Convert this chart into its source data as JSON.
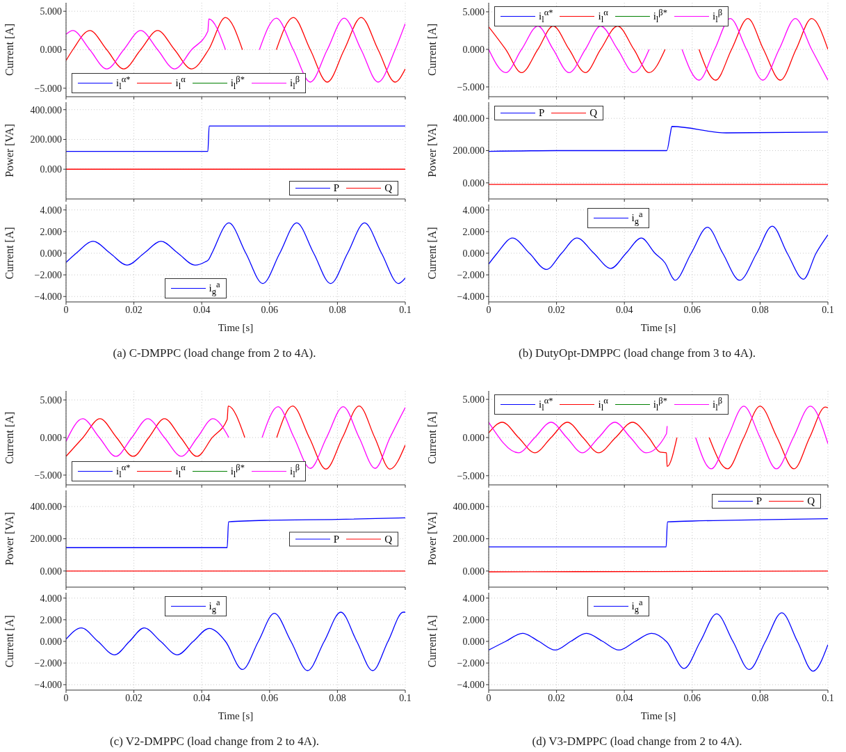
{
  "chart_data": [
    {
      "type": "line",
      "ylabel": "Current [A]",
      "xlim": [
        0,
        0.1
      ],
      "xticks": [
        0,
        0.02,
        0.04,
        0.06,
        0.08,
        0.1
      ],
      "ylim": [
        -6.1,
        6.1
      ],
      "yticks": [
        {
          "value": -5,
          "label": "−5.000"
        },
        {
          "value": 0,
          "label": "0.000"
        },
        {
          "value": 5,
          "label": "5.000"
        }
      ],
      "grid": true,
      "legend": "bottom left",
      "tick_labels": "y",
      "series": [
        {
          "name": "i$_{l}$$^{α*}$",
          "color": "#0000ff"
        },
        {
          "name": "i$_{l}$$^{α}$",
          "color": "#ff0000",
          "x": [
            0,
            0.002,
            0.007,
            0.012,
            0.017,
            0.022,
            0.027,
            0.032,
            0.037,
            0.042,
            0.047,
            0.052,
            0.057,
            0.062,
            0.067,
            0.072,
            0.077,
            0.082,
            0.087,
            0.092,
            0.097,
            0.1
          ],
          "values": [
            -1.4,
            0,
            2.5,
            0,
            -2.5,
            0,
            2.5,
            0,
            -2.5,
            0,
            4.2,
            0,
            null,
            0,
            4.2,
            0,
            -4.2,
            0,
            4.2,
            0,
            -4.2,
            -2.5
          ]
        },
        {
          "name": "i$_{l}$$^{β*}$",
          "color": "#008000"
        },
        {
          "name": "i$_{l}$$^{β}$",
          "color": "#ff00ff",
          "x": [
            0,
            0.002,
            0.007,
            0.012,
            0.017,
            0.022,
            0.027,
            0.032,
            0.037,
            0.0418,
            0.0421,
            0.047,
            0.052,
            0.057,
            0.062,
            0.067,
            0.072,
            0.077,
            0.082,
            0.087,
            0.092,
            0.097,
            0.1
          ],
          "values": [
            2.0,
            2.5,
            0,
            -2.5,
            0,
            2.5,
            0,
            -2.5,
            0,
            2.4,
            4.0,
            0,
            null,
            0,
            4.1,
            0,
            -4.2,
            0,
            4.1,
            0,
            -4.2,
            0,
            3.4
          ]
        }
      ]
    },
    {
      "type": "line",
      "ylabel": "Power [VA]",
      "xlim": [
        0,
        0.1
      ],
      "xticks": [
        0,
        0.02,
        0.04,
        0.06,
        0.08,
        0.1
      ],
      "ylim": [
        -200,
        450
      ],
      "yticks": [
        {
          "value": 0,
          "label": "0.000"
        },
        {
          "value": 200,
          "label": "200.000"
        },
        {
          "value": 400,
          "label": "400.000"
        }
      ],
      "grid": true,
      "legend": "bottom right",
      "tick_labels": "y",
      "series": [
        {
          "name": "P",
          "color": "#0000ff",
          "x": [
            0,
            0.02,
            0.0418,
            0.0422,
            0.06,
            0.08,
            0.1
          ],
          "values": [
            120,
            120,
            120,
            290,
            290,
            290,
            290
          ]
        },
        {
          "name": "Q",
          "color": "#ff0000",
          "x": [
            0,
            0.1
          ],
          "values": [
            0,
            0
          ]
        }
      ]
    },
    {
      "type": "line",
      "ylabel": "Current [A]",
      "xlabel": "Time [s]",
      "xlim": [
        0,
        0.1
      ],
      "xticks": [
        0,
        0.02,
        0.04,
        0.06,
        0.08,
        0.1
      ],
      "ylim": [
        -4.5,
        4.5
      ],
      "yticks": [
        {
          "value": -4,
          "label": "−4.000"
        },
        {
          "value": -2,
          "label": "−2.000"
        },
        {
          "value": 0,
          "label": "0.000"
        },
        {
          "value": 2,
          "label": "2.000"
        },
        {
          "value": 4,
          "label": "4.000"
        }
      ],
      "grid": true,
      "legend": "bottom",
      "annotations": [
        "(a) C-DMPPC (load change from 2 to 4A)."
      ],
      "series": [
        {
          "name": "i$_{g}$$^{a}$",
          "color": "#0000ff",
          "x": [
            0,
            0.003,
            0.008,
            0.013,
            0.018,
            0.023,
            0.028,
            0.033,
            0.038,
            0.041,
            0.042,
            0.043,
            0.048,
            0.053,
            0.058,
            0.063,
            0.068,
            0.073,
            0.078,
            0.083,
            0.088,
            0.093,
            0.098,
            0.1
          ],
          "values": [
            -0.85,
            0,
            1.1,
            0,
            -1.1,
            0,
            1.1,
            0,
            -1.1,
            -0.8,
            -0.6,
            0,
            2.8,
            0,
            -2.8,
            0,
            2.8,
            0,
            -2.8,
            0,
            2.8,
            0,
            -2.8,
            -2.3
          ]
        }
      ]
    },
    {
      "type": "line",
      "ylabel": "Current [A]",
      "xlim": [
        0,
        0.1
      ],
      "xticks": [
        0,
        0.02,
        0.04,
        0.06,
        0.08,
        0.1
      ],
      "ylim": [
        -6.3,
        6.2
      ],
      "yticks": [
        {
          "value": -5,
          "label": "−5.000"
        },
        {
          "value": 0,
          "label": "0.000"
        },
        {
          "value": 5,
          "label": "5.000"
        }
      ],
      "grid": true,
      "legend": "top left",
      "tick_labels": "y",
      "series": [
        {
          "name": "i$_{l}$$^{α*}$",
          "color": "#0000ff"
        },
        {
          "name": "i$_{l}$$^{α}$",
          "color": "#ff0000",
          "x": [
            0,
            0.005,
            0.0097,
            0.0145,
            0.019,
            0.0237,
            0.0285,
            0.033,
            0.038,
            0.0428,
            0.0473,
            0.052,
            0.0574,
            0.062,
            0.0669,
            0.0716,
            0.0764,
            0.081,
            0.086,
            0.0906,
            0.0952,
            0.1
          ],
          "values": [
            3.0,
            0,
            -3.1,
            0,
            3.1,
            0,
            -3.1,
            0,
            3.1,
            0,
            -3.1,
            0,
            null,
            0,
            -4.1,
            0,
            4.1,
            0,
            -4.1,
            0,
            4.1,
            0
          ]
        },
        {
          "name": "i$_{l}$$^{β*}$",
          "color": "#008000"
        },
        {
          "name": "i$_{l}$$^{β}$",
          "color": "#ff00ff",
          "x": [
            0,
            0.005,
            0.0097,
            0.0145,
            0.019,
            0.0237,
            0.0285,
            0.033,
            0.038,
            0.0428,
            0.0473,
            0.0525,
            0.057,
            0.062,
            0.0666,
            0.0712,
            0.076,
            0.0808,
            0.0856,
            0.0904,
            0.0952,
            0.1
          ],
          "values": [
            0,
            -3.1,
            0,
            3.1,
            0,
            -3.1,
            0,
            3.1,
            0,
            -3.1,
            0,
            null,
            0,
            -4.1,
            0,
            4.1,
            0,
            -4.1,
            0,
            4.1,
            0,
            -4.1
          ]
        }
      ]
    },
    {
      "type": "line",
      "ylabel": "Power [VA]",
      "xlim": [
        0,
        0.1
      ],
      "xticks": [
        0,
        0.02,
        0.04,
        0.06,
        0.08,
        0.1
      ],
      "ylim": [
        -100,
        500
      ],
      "yticks": [
        {
          "value": 0,
          "label": "0.000"
        },
        {
          "value": 200,
          "label": "200.000"
        },
        {
          "value": 400,
          "label": "400.000"
        }
      ],
      "grid": true,
      "legend": "top left",
      "tick_labels": "y",
      "series": [
        {
          "name": "P",
          "color": "#0000ff",
          "x": [
            0,
            0.02,
            0.04,
            0.0525,
            0.0535,
            0.054,
            0.07,
            0.1
          ],
          "values": [
            195,
            200,
            200,
            200,
            300,
            350,
            310,
            315
          ]
        },
        {
          "name": "Q",
          "color": "#ff0000",
          "x": [
            0,
            0.1
          ],
          "values": [
            -10,
            -10
          ]
        }
      ]
    },
    {
      "type": "line",
      "ylabel": "Current [A]",
      "xlabel": "Time [s]",
      "xlim": [
        0,
        0.1
      ],
      "xticks": [
        0,
        0.02,
        0.04,
        0.06,
        0.08,
        0.1
      ],
      "ylim": [
        -4.5,
        4.5
      ],
      "yticks": [
        {
          "value": -4,
          "label": "−4.000"
        },
        {
          "value": -2,
          "label": "−2.000"
        },
        {
          "value": 0,
          "label": "0.000"
        },
        {
          "value": 2,
          "label": "2.000"
        },
        {
          "value": 4,
          "label": "4.000"
        }
      ],
      "grid": true,
      "legend": "top",
      "annotations": [
        "(b) DutyOpt-DMPPC (load change from 3 to 4A)."
      ],
      "series": [
        {
          "name": "i$_{g}$$^{a}$",
          "color": "#0000ff",
          "x": [
            0,
            0.0025,
            0.007,
            0.012,
            0.017,
            0.0215,
            0.026,
            0.031,
            0.036,
            0.0405,
            0.045,
            0.049,
            0.052,
            0.0545,
            0.0549,
            0.0597,
            0.0645,
            0.069,
            0.074,
            0.079,
            0.0836,
            0.088,
            0.0928,
            0.0965,
            0.1
          ],
          "values": [
            -1.0,
            0,
            1.4,
            0,
            -1.5,
            0,
            1.4,
            0,
            -1.4,
            0,
            1.4,
            0,
            -0.9,
            -2.4,
            -2.5,
            0,
            2.4,
            0,
            -2.5,
            0,
            2.5,
            0,
            -2.4,
            0,
            1.7
          ]
        }
      ]
    },
    {
      "type": "line",
      "ylabel": "Current [A]",
      "xlim": [
        0,
        0.1
      ],
      "xticks": [
        0,
        0.02,
        0.04,
        0.06,
        0.08,
        0.1
      ],
      "ylim": [
        -6.3,
        6.2
      ],
      "yticks": [
        {
          "value": -5,
          "label": "−5.000"
        },
        {
          "value": 0,
          "label": "0.000"
        },
        {
          "value": 5,
          "label": "5.000"
        }
      ],
      "grid": true,
      "legend": "bottom left",
      "tick_labels": "y",
      "series": [
        {
          "name": "i$_{l}$$^{α*}$",
          "color": "#0000ff"
        },
        {
          "name": "i$_{l}$$^{α}$",
          "color": "#ff0000",
          "x": [
            0,
            0.005,
            0.01,
            0.0149,
            0.0198,
            0.0244,
            0.029,
            0.0338,
            0.0386,
            0.0431,
            0.0475,
            0.0478,
            0.0527,
            0.0575,
            0.0621,
            0.0668,
            0.0717,
            0.0766,
            0.0815,
            0.0864,
            0.091,
            0.0955,
            0.1
          ],
          "values": [
            -2.5,
            0,
            2.5,
            0,
            -2.5,
            0,
            2.5,
            0,
            -2.5,
            0,
            2.4,
            4.2,
            0,
            null,
            0,
            4.2,
            0,
            -4.2,
            0,
            4.2,
            0,
            -4.2,
            -1.0
          ]
        },
        {
          "name": "i$_{l}$$^{β*}$",
          "color": "#008000"
        },
        {
          "name": "i$_{l}$$^{β}$",
          "color": "#ff00ff",
          "x": [
            0,
            0.0049,
            0.0098,
            0.0147,
            0.0194,
            0.0241,
            0.029,
            0.034,
            0.0387,
            0.0433,
            0.048,
            0.053,
            0.0578,
            0.0625,
            0.0672,
            0.072,
            0.0768,
            0.0817,
            0.0864,
            0.0911,
            0.0955,
            0.1
          ],
          "values": [
            -0.5,
            2.5,
            0,
            -2.5,
            0,
            2.5,
            0,
            -2.5,
            0,
            2.5,
            0,
            null,
            0,
            4.1,
            0,
            -4.1,
            0,
            4.1,
            0,
            -4.1,
            0,
            4.0
          ]
        }
      ]
    },
    {
      "type": "line",
      "ylabel": "Power [VA]",
      "xlim": [
        0,
        0.1
      ],
      "xticks": [
        0,
        0.02,
        0.04,
        0.06,
        0.08,
        0.1
      ],
      "ylim": [
        -100,
        500
      ],
      "yticks": [
        {
          "value": 0,
          "label": "0.000"
        },
        {
          "value": 200,
          "label": "200.000"
        },
        {
          "value": 400,
          "label": "400.000"
        }
      ],
      "grid": true,
      "legend": "right",
      "tick_labels": "y",
      "series": [
        {
          "name": "P",
          "color": "#0000ff",
          "x": [
            0,
            0.02,
            0.0475,
            0.0479,
            0.06,
            0.08,
            0.1
          ],
          "values": [
            145,
            145,
            145,
            305,
            315,
            320,
            330
          ]
        },
        {
          "name": "Q",
          "color": "#ff0000",
          "x": [
            0,
            0.1
          ],
          "values": [
            0,
            0
          ]
        }
      ]
    },
    {
      "type": "line",
      "ylabel": "Current [A]",
      "xlabel": "Time [s]",
      "xlim": [
        0,
        0.1
      ],
      "xticks": [
        0,
        0.02,
        0.04,
        0.06,
        0.08,
        0.1
      ],
      "ylim": [
        -4.5,
        4.5
      ],
      "yticks": [
        {
          "value": -4,
          "label": "−4.000"
        },
        {
          "value": -2,
          "label": "−2.000"
        },
        {
          "value": 0,
          "label": "0.000"
        },
        {
          "value": 2,
          "label": "2.000"
        },
        {
          "value": 4,
          "label": "4.000"
        }
      ],
      "grid": true,
      "legend": "top",
      "annotations": [
        "(c) V2-DMPPC (load change from 2 to 4A)."
      ],
      "series": [
        {
          "name": "i$_{g}$$^{a}$",
          "color": "#0000ff",
          "x": [
            0,
            0.0045,
            0.0094,
            0.0143,
            0.0187,
            0.023,
            0.0279,
            0.0328,
            0.0375,
            0.0422,
            0.047,
            0.052,
            0.0567,
            0.0614,
            0.0663,
            0.0712,
            0.0761,
            0.081,
            0.0857,
            0.0904,
            0.0949,
            0.0994,
            0.1
          ],
          "values": [
            0.2,
            1.25,
            0,
            -1.25,
            0,
            1.25,
            0,
            -1.25,
            0,
            1.2,
            0,
            -2.6,
            0,
            2.6,
            0,
            -2.7,
            0,
            2.7,
            0,
            -2.7,
            0,
            2.7,
            2.7
          ]
        }
      ]
    },
    {
      "type": "line",
      "ylabel": "Current [A]",
      "xlim": [
        0,
        0.1
      ],
      "xticks": [
        0,
        0.02,
        0.04,
        0.06,
        0.08,
        0.1
      ],
      "ylim": [
        -6.2,
        6.1
      ],
      "yticks": [
        {
          "value": -5,
          "label": "−5.000"
        },
        {
          "value": 0,
          "label": "0.000"
        },
        {
          "value": 5,
          "label": "5.000"
        }
      ],
      "grid": true,
      "legend": "top left",
      "tick_labels": "y",
      "series": [
        {
          "name": "i$_{l}$$^{α*}$",
          "color": "#0000ff"
        },
        {
          "name": "i$_{l}$$^{α}$",
          "color": "#ff0000",
          "x": [
            0,
            0.004,
            0.0088,
            0.0136,
            0.0184,
            0.0232,
            0.0278,
            0.0324,
            0.0374,
            0.0424,
            0.0472,
            0.0505,
            0.0524,
            0.0526,
            0.0555,
            0.0595,
            0.065,
            0.0704,
            0.0752,
            0.08,
            0.085,
            0.09,
            0.0946,
            0.0992,
            0.1
          ],
          "values": [
            0.6,
            2.0,
            0,
            -2.0,
            0,
            2.0,
            0,
            -2.0,
            0,
            2.0,
            0,
            -1.9,
            -2.0,
            -3.8,
            0,
            null,
            0,
            -4.1,
            0,
            4.1,
            0,
            -4.1,
            0,
            4.0,
            3.9
          ]
        },
        {
          "name": "i$_{l}$$^{β*}$",
          "color": "#008000"
        },
        {
          "name": "i$_{l}$$^{β}$",
          "color": "#ff00ff",
          "x": [
            0,
            0.0088,
            0.0136,
            0.0184,
            0.023,
            0.0276,
            0.0324,
            0.0372,
            0.0418,
            0.0464,
            0.0524,
            0.0526,
            0.056,
            0.061,
            0.0656,
            0.0704,
            0.0752,
            0.08,
            0.0848,
            0.0898,
            0.0948,
            0.1
          ],
          "values": [
            2.0,
            -2.0,
            0,
            2.0,
            0,
            -2.0,
            0,
            2.0,
            0,
            -2.0,
            0.5,
            1.5,
            null,
            0,
            -4.1,
            0,
            4.1,
            0,
            -4.1,
            0,
            4.1,
            -0.8
          ]
        }
      ]
    },
    {
      "type": "line",
      "ylabel": "Power [VA]",
      "xlim": [
        0,
        0.1
      ],
      "xticks": [
        0,
        0.02,
        0.04,
        0.06,
        0.08,
        0.1
      ],
      "ylim": [
        -100,
        500
      ],
      "yticks": [
        {
          "value": 0,
          "label": "0.000"
        },
        {
          "value": 200,
          "label": "200.000"
        },
        {
          "value": 400,
          "label": "400.000"
        }
      ],
      "grid": true,
      "legend": "top right",
      "tick_labels": "y",
      "series": [
        {
          "name": "P",
          "color": "#0000ff",
          "x": [
            0,
            0.02,
            0.0523,
            0.0527,
            0.06,
            0.08,
            0.1
          ],
          "values": [
            150,
            150,
            150,
            305,
            310,
            318,
            325
          ]
        },
        {
          "name": "Q",
          "color": "#ff0000",
          "x": [
            0,
            0.05,
            0.1
          ],
          "values": [
            -5,
            -3,
            0
          ]
        }
      ]
    },
    {
      "type": "line",
      "ylabel": "Current [A]",
      "xlabel": "Time [s]",
      "xlim": [
        0,
        0.1
      ],
      "xticks": [
        0,
        0.02,
        0.04,
        0.06,
        0.08,
        0.1
      ],
      "ylim": [
        -4.5,
        4.5
      ],
      "yticks": [
        {
          "value": -4,
          "label": "−4.000"
        },
        {
          "value": -2,
          "label": "−2.000"
        },
        {
          "value": 0,
          "label": "0.000"
        },
        {
          "value": 2,
          "label": "2.000"
        },
        {
          "value": 4,
          "label": "4.000"
        }
      ],
      "grid": true,
      "legend": "top",
      "annotations": [
        "(d) V3-DMPPC (load change from 2 to 4A)."
      ],
      "series": [
        {
          "name": "i$_{g}$$^{a}$",
          "color": "#0000ff",
          "x": [
            0,
            0.005,
            0.01,
            0.0148,
            0.0196,
            0.0242,
            0.0288,
            0.0336,
            0.0384,
            0.0432,
            0.048,
            0.0525,
            0.0576,
            0.0624,
            0.0672,
            0.072,
            0.0768,
            0.0816,
            0.0864,
            0.091,
            0.0956,
            0.1
          ],
          "values": [
            -0.8,
            0,
            0.75,
            0,
            -0.8,
            0,
            0.75,
            0,
            -0.8,
            0,
            0.75,
            -0.05,
            -2.5,
            0,
            2.55,
            0,
            -2.6,
            0,
            2.65,
            0,
            -2.75,
            -0.3
          ]
        }
      ]
    }
  ]
}
